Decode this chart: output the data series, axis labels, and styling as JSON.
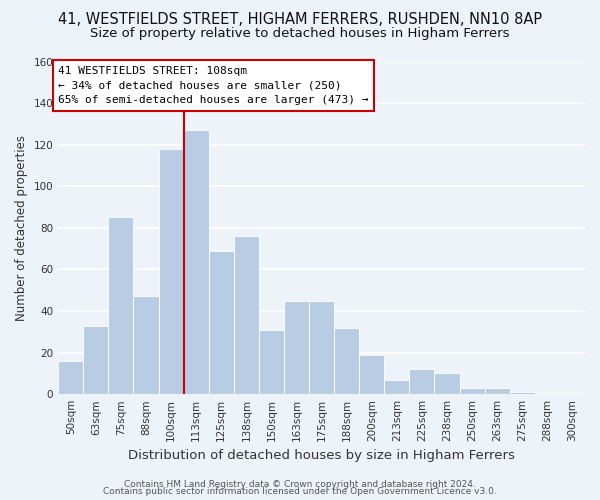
{
  "title": "41, WESTFIELDS STREET, HIGHAM FERRERS, RUSHDEN, NN10 8AP",
  "subtitle": "Size of property relative to detached houses in Higham Ferrers",
  "xlabel": "Distribution of detached houses by size in Higham Ferrers",
  "ylabel": "Number of detached properties",
  "categories": [
    "50sqm",
    "63sqm",
    "75sqm",
    "88sqm",
    "100sqm",
    "113sqm",
    "125sqm",
    "138sqm",
    "150sqm",
    "163sqm",
    "175sqm",
    "188sqm",
    "200sqm",
    "213sqm",
    "225sqm",
    "238sqm",
    "250sqm",
    "263sqm",
    "275sqm",
    "288sqm",
    "300sqm"
  ],
  "values": [
    16,
    33,
    85,
    47,
    118,
    127,
    69,
    76,
    31,
    45,
    45,
    32,
    19,
    7,
    12,
    10,
    3,
    3,
    1,
    0,
    0
  ],
  "bar_color": "#b8cce4",
  "bar_edge_color": "#dde8f4",
  "marker_line_color": "#cc0000",
  "marker_label": "41 WESTFIELDS STREET: 108sqm",
  "annotation_line1": "← 34% of detached houses are smaller (250)",
  "annotation_line2": "65% of semi-detached houses are larger (473) →",
  "ylim": [
    0,
    160
  ],
  "yticks": [
    0,
    20,
    40,
    60,
    80,
    100,
    120,
    140,
    160
  ],
  "footer1": "Contains HM Land Registry data © Crown copyright and database right 2024.",
  "footer2": "Contains public sector information licensed under the Open Government Licence v3.0.",
  "background_color": "#eef2f9",
  "plot_background": "#eef2f9",
  "grid_color": "#ffffff",
  "title_fontsize": 10.5,
  "subtitle_fontsize": 9.5,
  "xlabel_fontsize": 9.5,
  "ylabel_fontsize": 8.5,
  "tick_fontsize": 7.5,
  "footer_fontsize": 6.5,
  "annotation_fontsize": 8.0
}
